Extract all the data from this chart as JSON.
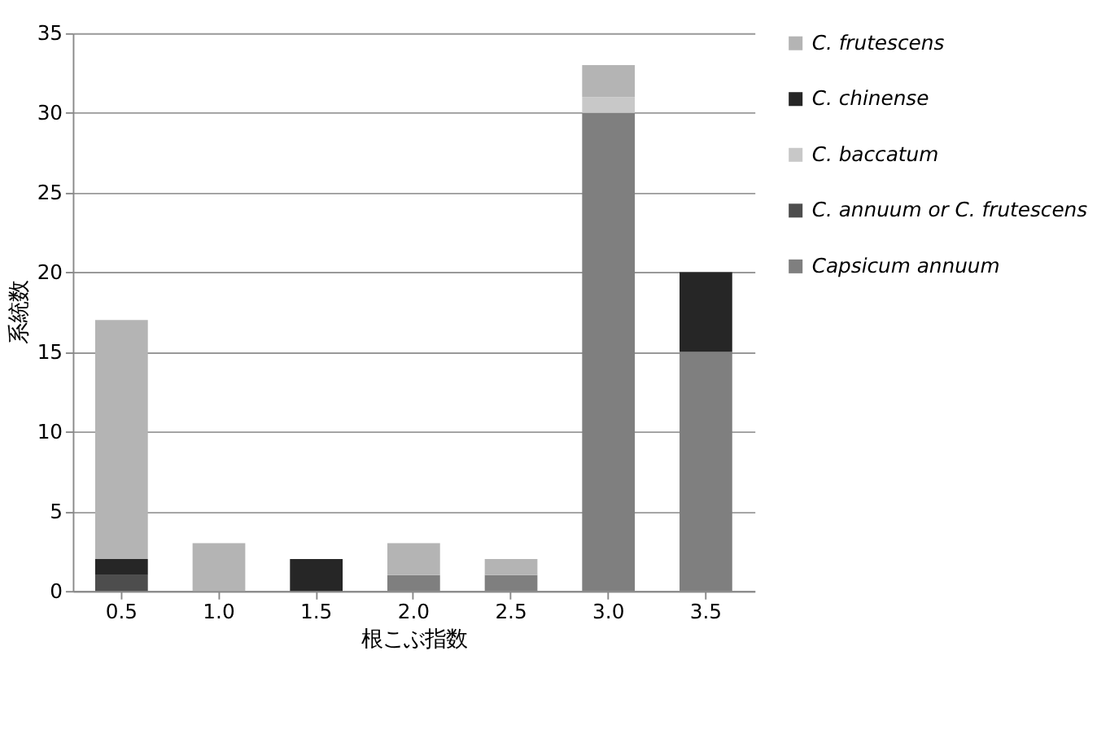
{
  "chart_data": {
    "type": "bar",
    "stacked": true,
    "xlabel": "根こぶ指数",
    "ylabel": "系統数",
    "categories": [
      "0.5",
      "1.0",
      "1.5",
      "2.0",
      "2.5",
      "3.0",
      "3.5"
    ],
    "series": [
      {
        "name": "Capsicum annuum",
        "color": "#7f7f7f",
        "values": [
          0,
          0,
          0,
          1,
          1,
          30,
          15
        ]
      },
      {
        "name": "C. annuum or C. frutescens",
        "color": "#4d4d4d",
        "values": [
          1,
          0,
          0,
          0,
          0,
          0,
          0
        ]
      },
      {
        "name": "C. baccatum",
        "color": "#c8c8c8",
        "values": [
          0,
          0,
          0,
          0,
          0,
          1,
          0
        ]
      },
      {
        "name": "C. chinense",
        "color": "#262626",
        "values": [
          1,
          0,
          2,
          0,
          0,
          0,
          5
        ]
      },
      {
        "name": "C. frutescens",
        "color": "#b4b4b4",
        "values": [
          15,
          3,
          0,
          2,
          1,
          2,
          0
        ]
      }
    ],
    "ylim": [
      0,
      35
    ],
    "yticks": [
      0,
      5,
      10,
      15,
      20,
      25,
      30,
      35
    ],
    "grid": "y",
    "legend": "right"
  }
}
